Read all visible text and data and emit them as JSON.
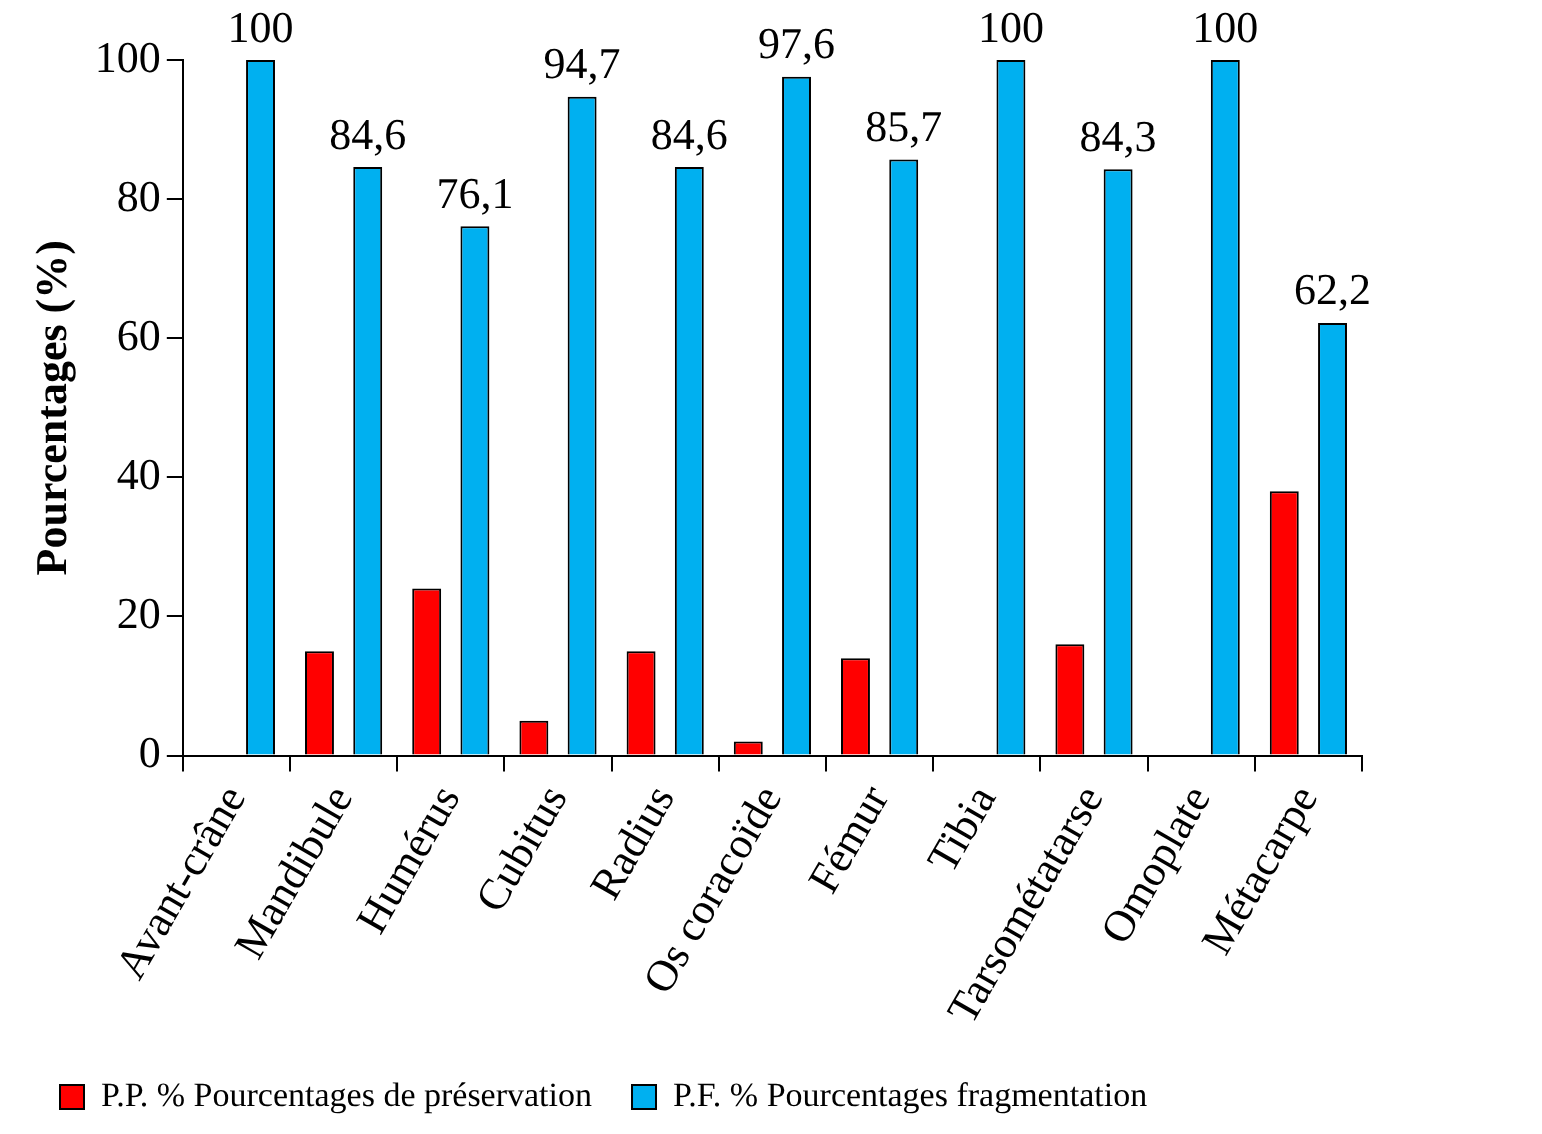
{
  "chart_data": {
    "type": "bar",
    "ylabel": "Pourcentages (%)",
    "categories": [
      "Avant-crâne",
      "Mandibule",
      "Humérus",
      "Cubitus",
      "Radius",
      "Os coracoïde",
      "Fémur",
      "Tibia",
      "Tarsométatarse",
      "Omoplate",
      "Métacarpe"
    ],
    "series": [
      {
        "name": "P.P. % Pourcentages de préservation",
        "color": "#ff0000",
        "values": [
          0,
          15,
          24,
          5,
          15,
          2,
          14,
          0,
          16,
          0,
          38
        ]
      },
      {
        "name": "P.F. % Pourcentages fragmentation",
        "color": "#00b0f0",
        "values": [
          100,
          84.6,
          76.1,
          94.7,
          84.6,
          97.6,
          85.7,
          100,
          84.3,
          100,
          62.2
        ],
        "value_labels": [
          "100",
          "84,6",
          "76,1",
          "94,7",
          "84,6",
          "97,6",
          "85,7",
          "100",
          "84,3",
          "100",
          "62,2"
        ]
      }
    ],
    "ylim": [
      0,
      100
    ],
    "yticks": [
      0,
      20,
      40,
      60,
      80,
      100
    ],
    "legend": "bottom"
  }
}
